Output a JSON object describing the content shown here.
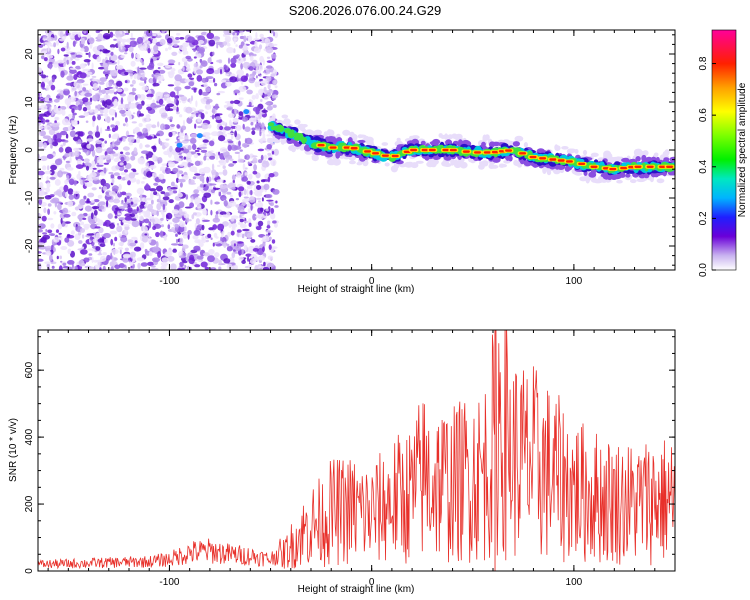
{
  "title": "S206.2026.076.00.24.G29",
  "chart_data": [
    {
      "type": "heatmap",
      "title": "S206.2026.076.00.24.G29",
      "xlabel": "Height of straight line (km)",
      "ylabel": "Frequency (Hz)",
      "xlim": [
        -165,
        150
      ],
      "ylim": [
        -25,
        25
      ],
      "xticks": [
        -100,
        0,
        100
      ],
      "yticks": [
        -20,
        -10,
        0,
        10,
        20
      ],
      "colorbar": {
        "label": "Normalized spectral amplitude",
        "range": [
          0,
          0.93
        ],
        "ticks": [
          0.0,
          0.2,
          0.4,
          0.6,
          0.8
        ]
      },
      "ridge": {
        "name": "frequency track",
        "x": [
          -50,
          -40,
          -30,
          -20,
          -10,
          0,
          10,
          20,
          30,
          40,
          50,
          60,
          70,
          80,
          90,
          100,
          110,
          120,
          130,
          140,
          150
        ],
        "y": [
          5,
          3.5,
          1.5,
          0.5,
          0.5,
          -0.5,
          -1.5,
          0,
          0,
          0,
          -0.5,
          -0.5,
          0,
          -1.5,
          -2,
          -2.5,
          -3.5,
          -4,
          -3.5,
          -3.5,
          -3.5
        ]
      }
    },
    {
      "type": "line",
      "xlabel": "Height of straight line (km)",
      "ylabel": "SNR (10 * v/v)",
      "xlim": [
        -165,
        150
      ],
      "ylim": [
        0,
        720
      ],
      "xticks": [
        -100,
        0,
        100
      ],
      "yticks": [
        0,
        200,
        400,
        600
      ],
      "series": [
        {
          "name": "SNR",
          "color": "#e8302a",
          "x": [
            -165,
            -150,
            -130,
            -110,
            -100,
            -90,
            -80,
            -70,
            -60,
            -50,
            -45,
            -40,
            -35,
            -30,
            -25,
            -20,
            -10,
            0,
            10,
            20,
            25,
            30,
            40,
            50,
            55,
            60,
            62,
            70,
            80,
            90,
            100,
            110,
            120,
            130,
            140,
            150
          ],
          "values": [
            20,
            22,
            25,
            28,
            35,
            55,
            60,
            50,
            45,
            35,
            60,
            110,
            160,
            200,
            220,
            260,
            270,
            250,
            310,
            340,
            420,
            400,
            380,
            430,
            420,
            560,
            720,
            500,
            480,
            420,
            360,
            330,
            310,
            300,
            320,
            310
          ]
        }
      ]
    }
  ]
}
